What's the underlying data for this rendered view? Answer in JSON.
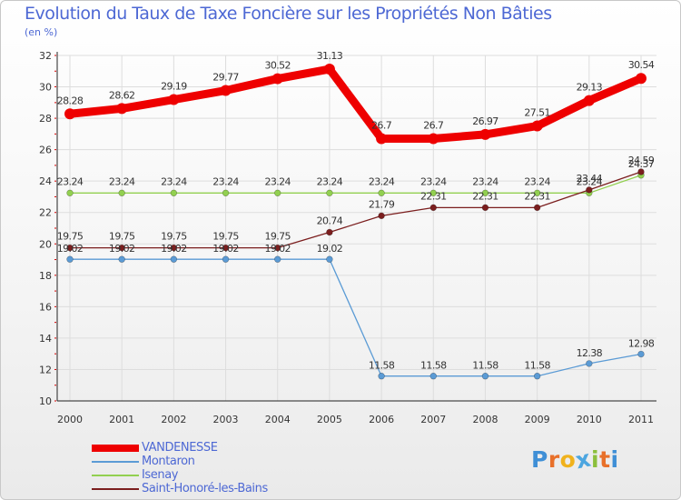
{
  "colors": {
    "title": "#4d68d4",
    "grid": "#dddddd",
    "axis": "#222222",
    "tick_marks": "#d40000"
  },
  "brand": {
    "letters": [
      "P",
      "r",
      "o",
      "x",
      "i",
      "t",
      "i"
    ],
    "letter_colors": [
      "#3f8fd6",
      "#e8702a",
      "#f0b21d",
      "#4da6e0",
      "#8bbf3c",
      "#e8702a",
      "#3f8fd6"
    ]
  },
  "chart_data": {
    "type": "line",
    "title": "Evolution du Taux de Taxe Foncière sur les Propriétés Non Bâties",
    "subtitle": "(en %)",
    "xlabel": "",
    "ylabel": "(en %)",
    "x": [
      "2000",
      "2001",
      "2002",
      "2003",
      "2004",
      "2005",
      "2006",
      "2007",
      "2008",
      "2009",
      "2010",
      "2011"
    ],
    "ylim": [
      10,
      32
    ],
    "yticks": [
      10,
      12,
      14,
      16,
      18,
      20,
      22,
      24,
      26,
      28,
      30,
      32
    ],
    "grid": true,
    "legend_position": "bottom-left",
    "series": [
      {
        "name": "VANDENESSE",
        "color": "#ee0000",
        "style": "thick",
        "values": [
          28.28,
          28.62,
          29.19,
          29.77,
          30.52,
          31.13,
          26.7,
          26.7,
          26.97,
          27.51,
          29.13,
          30.54
        ],
        "labels": [
          "28.28",
          "28.62",
          "29.19",
          "29.77",
          "30.52",
          "31.13",
          "26.7",
          "26.7",
          "26.97",
          "27.51",
          "29.13",
          "30.54"
        ]
      },
      {
        "name": "Montaron",
        "color": "#5b9bd5",
        "style": "thin",
        "values": [
          19.02,
          19.02,
          19.02,
          19.02,
          19.02,
          19.02,
          11.58,
          11.58,
          11.58,
          11.58,
          12.38,
          12.98
        ],
        "labels": [
          "19.02",
          "19.02",
          "19.02",
          "19.02",
          "19.02",
          "19.02",
          "11.58",
          "11.58",
          "11.58",
          "11.58",
          "12.38",
          "12.98"
        ]
      },
      {
        "name": "Isenay",
        "color": "#92d050",
        "style": "thin",
        "values": [
          23.24,
          23.24,
          23.24,
          23.24,
          23.24,
          23.24,
          23.24,
          23.24,
          23.24,
          23.24,
          23.24,
          24.37
        ],
        "labels": [
          "23.24",
          "23.24",
          "23.24",
          "23.24",
          "23.24",
          "23.24",
          "23.24",
          "23.24",
          "23.24",
          "23.24",
          "23.24",
          "24.37"
        ]
      },
      {
        "name": "Saint-Honoré-les-Bains",
        "color": "#7b1e1e",
        "style": "thin",
        "values": [
          19.75,
          19.75,
          19.75,
          19.75,
          19.75,
          20.74,
          21.79,
          22.31,
          22.31,
          22.31,
          23.44,
          24.59
        ],
        "labels": [
          "19.75",
          "19.75",
          "19.75",
          "19.75",
          "19.75",
          "20.74",
          "21.79",
          "22.31",
          "22.31",
          "22.31",
          "23.44",
          "24.59"
        ]
      }
    ]
  }
}
